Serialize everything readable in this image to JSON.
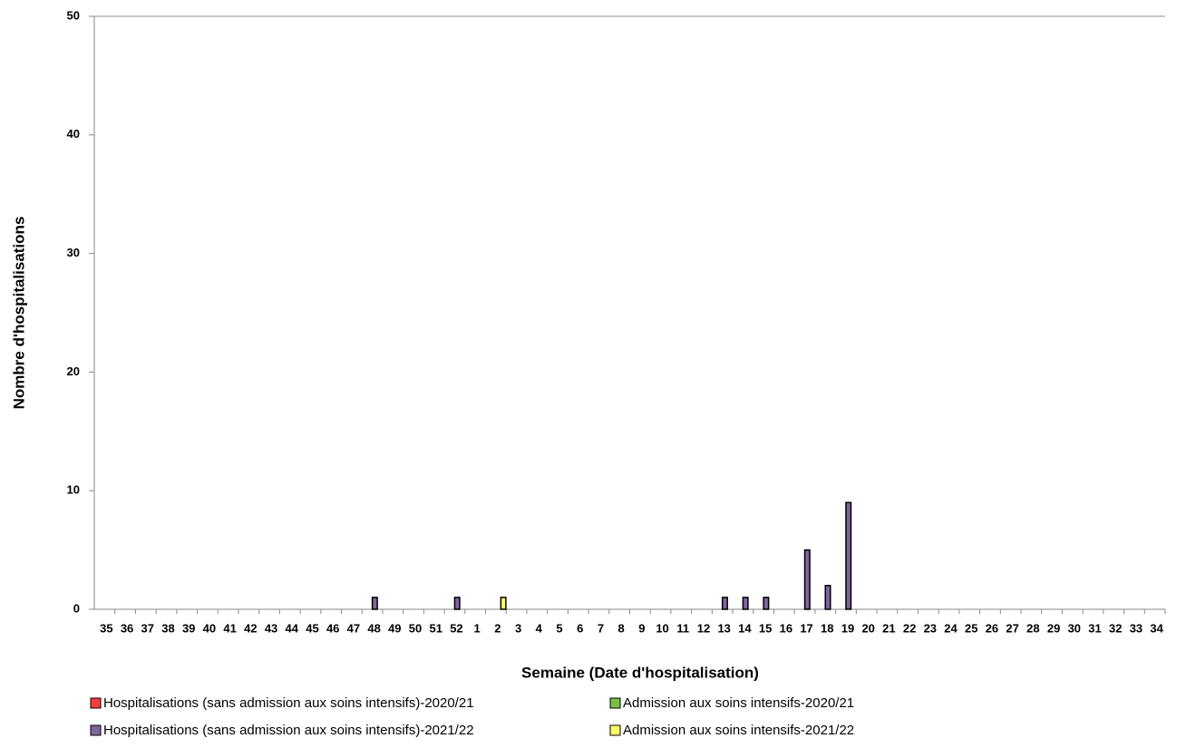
{
  "chart_data": {
    "type": "bar",
    "x_label": "Semaine (Date d'hospitalisation)",
    "y_label": "Nombre d'hospitalisations",
    "categories": [
      "35",
      "36",
      "37",
      "38",
      "39",
      "40",
      "41",
      "42",
      "43",
      "44",
      "45",
      "46",
      "47",
      "48",
      "49",
      "50",
      "51",
      "52",
      "1",
      "2",
      "3",
      "4",
      "5",
      "6",
      "7",
      "8",
      "9",
      "10",
      "11",
      "12",
      "13",
      "14",
      "15",
      "16",
      "17",
      "18",
      "19",
      "20",
      "21",
      "22",
      "23",
      "24",
      "25",
      "26",
      "27",
      "28",
      "29",
      "30",
      "31",
      "32",
      "33",
      "34"
    ],
    "series": [
      {
        "name": "Hospitalisations (sans admission aux soins intensifs)-2020/21",
        "color": "#ff3b3b",
        "values": [
          0,
          0,
          0,
          0,
          0,
          0,
          0,
          0,
          0,
          0,
          0,
          0,
          0,
          0,
          0,
          0,
          0,
          0,
          0,
          0,
          0,
          0,
          0,
          0,
          0,
          0,
          0,
          0,
          0,
          0,
          0,
          0,
          0,
          0,
          0,
          0,
          0,
          0,
          0,
          0,
          0,
          0,
          0,
          0,
          0,
          0,
          0,
          0,
          0,
          0,
          0,
          0
        ]
      },
      {
        "name": "Admission aux soins intensifs-2020/21",
        "color": "#7ac143",
        "values": [
          0,
          0,
          0,
          0,
          0,
          0,
          0,
          0,
          0,
          0,
          0,
          0,
          0,
          0,
          0,
          0,
          0,
          0,
          0,
          0,
          0,
          0,
          0,
          0,
          0,
          0,
          0,
          0,
          0,
          0,
          0,
          0,
          0,
          0,
          0,
          0,
          0,
          0,
          0,
          0,
          0,
          0,
          0,
          0,
          0,
          0,
          0,
          0,
          0,
          0,
          0,
          0
        ]
      },
      {
        "name": "Hospitalisations (sans admission aux soins intensifs)-2021/22",
        "color": "#8064a2",
        "values": [
          0,
          0,
          0,
          0,
          0,
          0,
          0,
          0,
          0,
          0,
          0,
          0,
          0,
          1,
          0,
          0,
          0,
          1,
          0,
          0,
          0,
          0,
          0,
          0,
          0,
          0,
          0,
          0,
          0,
          0,
          1,
          1,
          1,
          0,
          5,
          2,
          9,
          0,
          0,
          0,
          0,
          0,
          0,
          0,
          0,
          0,
          0,
          0,
          0,
          0,
          0,
          0
        ]
      },
      {
        "name": "Admission aux soins intensifs-2021/22",
        "color": "#ffff66",
        "values": [
          0,
          0,
          0,
          0,
          0,
          0,
          0,
          0,
          0,
          0,
          0,
          0,
          0,
          0,
          0,
          0,
          0,
          0,
          0,
          1,
          0,
          0,
          0,
          0,
          0,
          0,
          0,
          0,
          0,
          0,
          0,
          0,
          0,
          0,
          0,
          0,
          0,
          0,
          0,
          0,
          0,
          0,
          0,
          0,
          0,
          0,
          0,
          0,
          0,
          0,
          0,
          0
        ]
      }
    ],
    "ylim": [
      0,
      50
    ],
    "yticks": [
      0,
      10,
      20,
      30,
      40,
      50
    ],
    "grid": false,
    "legend": "bottom"
  }
}
